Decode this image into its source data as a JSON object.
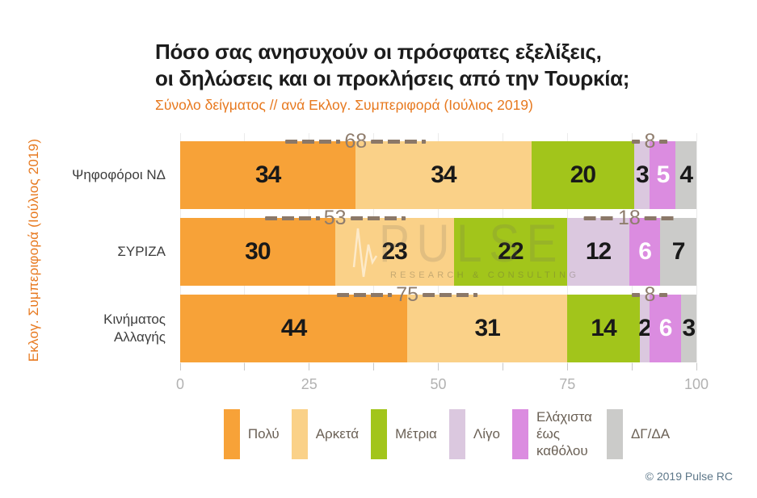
{
  "title": {
    "lines": [
      "Πόσο σας ανησυχούν οι πρόσφατες εξελίξεις,",
      "οι δηλώσεις και οι προκλήσεις από την Τουρκία;"
    ]
  },
  "subtitle": "Σύνολο δείγματος // ανά Εκλογ. Συμπεριφορά (Ιούλιος 2019)",
  "y_axis_label": "Εκλογ. Συμπεριφορά (Ιούλιος 2019)",
  "watermark": {
    "brand": "PULSE",
    "tagline": "RESEARCH & CONSULTING"
  },
  "footer": {
    "copyright": "© 2019 Pulse RC"
  },
  "colors": {
    "accent_orange": "#E7791F",
    "annotation_brown": "#8F7D6D",
    "row_label": "#3d3d3d",
    "axis_label": "#b2b2b2",
    "legend_text": "#6B6156",
    "copyright": "#5D7789"
  },
  "chart_data": {
    "type": "bar",
    "orientation": "horizontal",
    "stacked": true,
    "title": "Πόσο σας ανησυχούν οι πρόσφατες εξελίξεις, οι δηλώσεις και οι προκλήσεις από την Τουρκία;",
    "subtitle": "Σύνολο δείγματος // ανά Εκλογ. Συμπεριφορά (Ιούλιος 2019)",
    "categories": [
      "Ψηφοφόροι ΝΔ",
      "ΣΥΡΙΖΑ",
      "Κινήματος Αλλαγής"
    ],
    "series": [
      {
        "name": "Πολύ",
        "color": "#F7A238",
        "values": [
          34,
          30,
          44
        ]
      },
      {
        "name": "Αρκετά",
        "color": "#FAD188",
        "values": [
          34,
          23,
          31
        ]
      },
      {
        "name": "Μέτρια",
        "color": "#A2C51B",
        "values": [
          20,
          22,
          14
        ]
      },
      {
        "name": "Λίγο",
        "color": "#DBC8DF",
        "values": [
          3,
          12,
          2
        ]
      },
      {
        "name": "Ελάχιστα έως καθόλου",
        "color": "#DB8CE0",
        "values": [
          5,
          6,
          6
        ],
        "value_text_color": "#FFFFFF"
      },
      {
        "name": "ΔΓ/ΔΑ",
        "color": "#CBCBC9",
        "values": [
          4,
          7,
          3
        ]
      }
    ],
    "group_annotations": [
      {
        "row": 0,
        "label": "68",
        "segments": [
          0,
          1
        ]
      },
      {
        "row": 0,
        "label": "8",
        "segments": [
          3,
          4
        ]
      },
      {
        "row": 1,
        "label": "53",
        "segments": [
          0,
          1
        ]
      },
      {
        "row": 1,
        "label": "18",
        "segments": [
          3,
          4
        ]
      },
      {
        "row": 2,
        "label": "75",
        "segments": [
          0,
          1
        ]
      },
      {
        "row": 2,
        "label": "8",
        "segments": [
          3,
          4
        ]
      }
    ],
    "xlim": [
      0,
      100
    ],
    "x_ticks": [
      0,
      25,
      50,
      75,
      100
    ],
    "x_minor_ticks": [
      12.5,
      37.5,
      62.5,
      87.5
    ],
    "grid": true,
    "legend_position": "bottom"
  }
}
